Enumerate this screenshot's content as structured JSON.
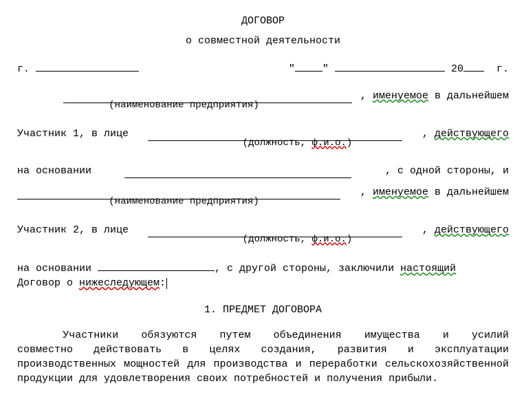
{
  "title_line1": "ДОГОВОР",
  "title_line2": "о совместной деятельности",
  "city_prefix": "г.",
  "date_quote": "\"",
  "date_year_prefix": "20",
  "date_year_suffix": "г.",
  "named_phrase_pre": ", ",
  "named_word": "именуемое",
  "named_phrase_post": " в дальнейшем",
  "hint_org": "(наименование предприятия)",
  "participant1_label": "Участник 1, в лице ",
  "acting_word_pre": ", ",
  "acting_word": "действующего",
  "hint_position_pre": "(должность, ",
  "hint_fio": "ф.и.о.",
  "hint_position_post": ")",
  "basis_label": "на основании ",
  "basis_tail_pre": ", с",
  "basis_tail_word": " одной ",
  "basis_tail_post": "стороны,  и",
  "participant2_label": "Участник 2, в лице ",
  "basis2_tail": ", с другой стороны, заключили ",
  "present_word": "настоящий",
  "conclude_line_pre": "Договор о ",
  "conclude_word": "нижеследующем",
  "conclude_colon": ":",
  "section1_title": "1. ПРЕДМЕТ ДОГОВОРА",
  "paragraph_indent": "      ",
  "para_w1": "Участники",
  "para_w2": "обязуются",
  "para_w3": "путем",
  "para_w4": "объединения",
  "para_w5": "имущества",
  "para_w6": "и",
  "para_w7": "усилий",
  "para_rest": "совместно действовать  в  целях  создания,  развития  и  эксплуатации производственных   мощностей   для   производства   и    переработки сельскохозяйственной продукции для удовлетворения своих  потребностей и получения прибыли.",
  "blank_widths": {
    "city": 150,
    "date_day": 40,
    "date_month": 160,
    "date_year": 30,
    "org_name": 420,
    "person": 350,
    "basis": 330,
    "basis2": 170
  },
  "colors": {
    "text": "#000000",
    "bg": "#ffffff",
    "wavy_red": "#d00000",
    "wavy_green": "#1a8a1a"
  },
  "font_family": "Courier New",
  "font_size_pt": 11
}
